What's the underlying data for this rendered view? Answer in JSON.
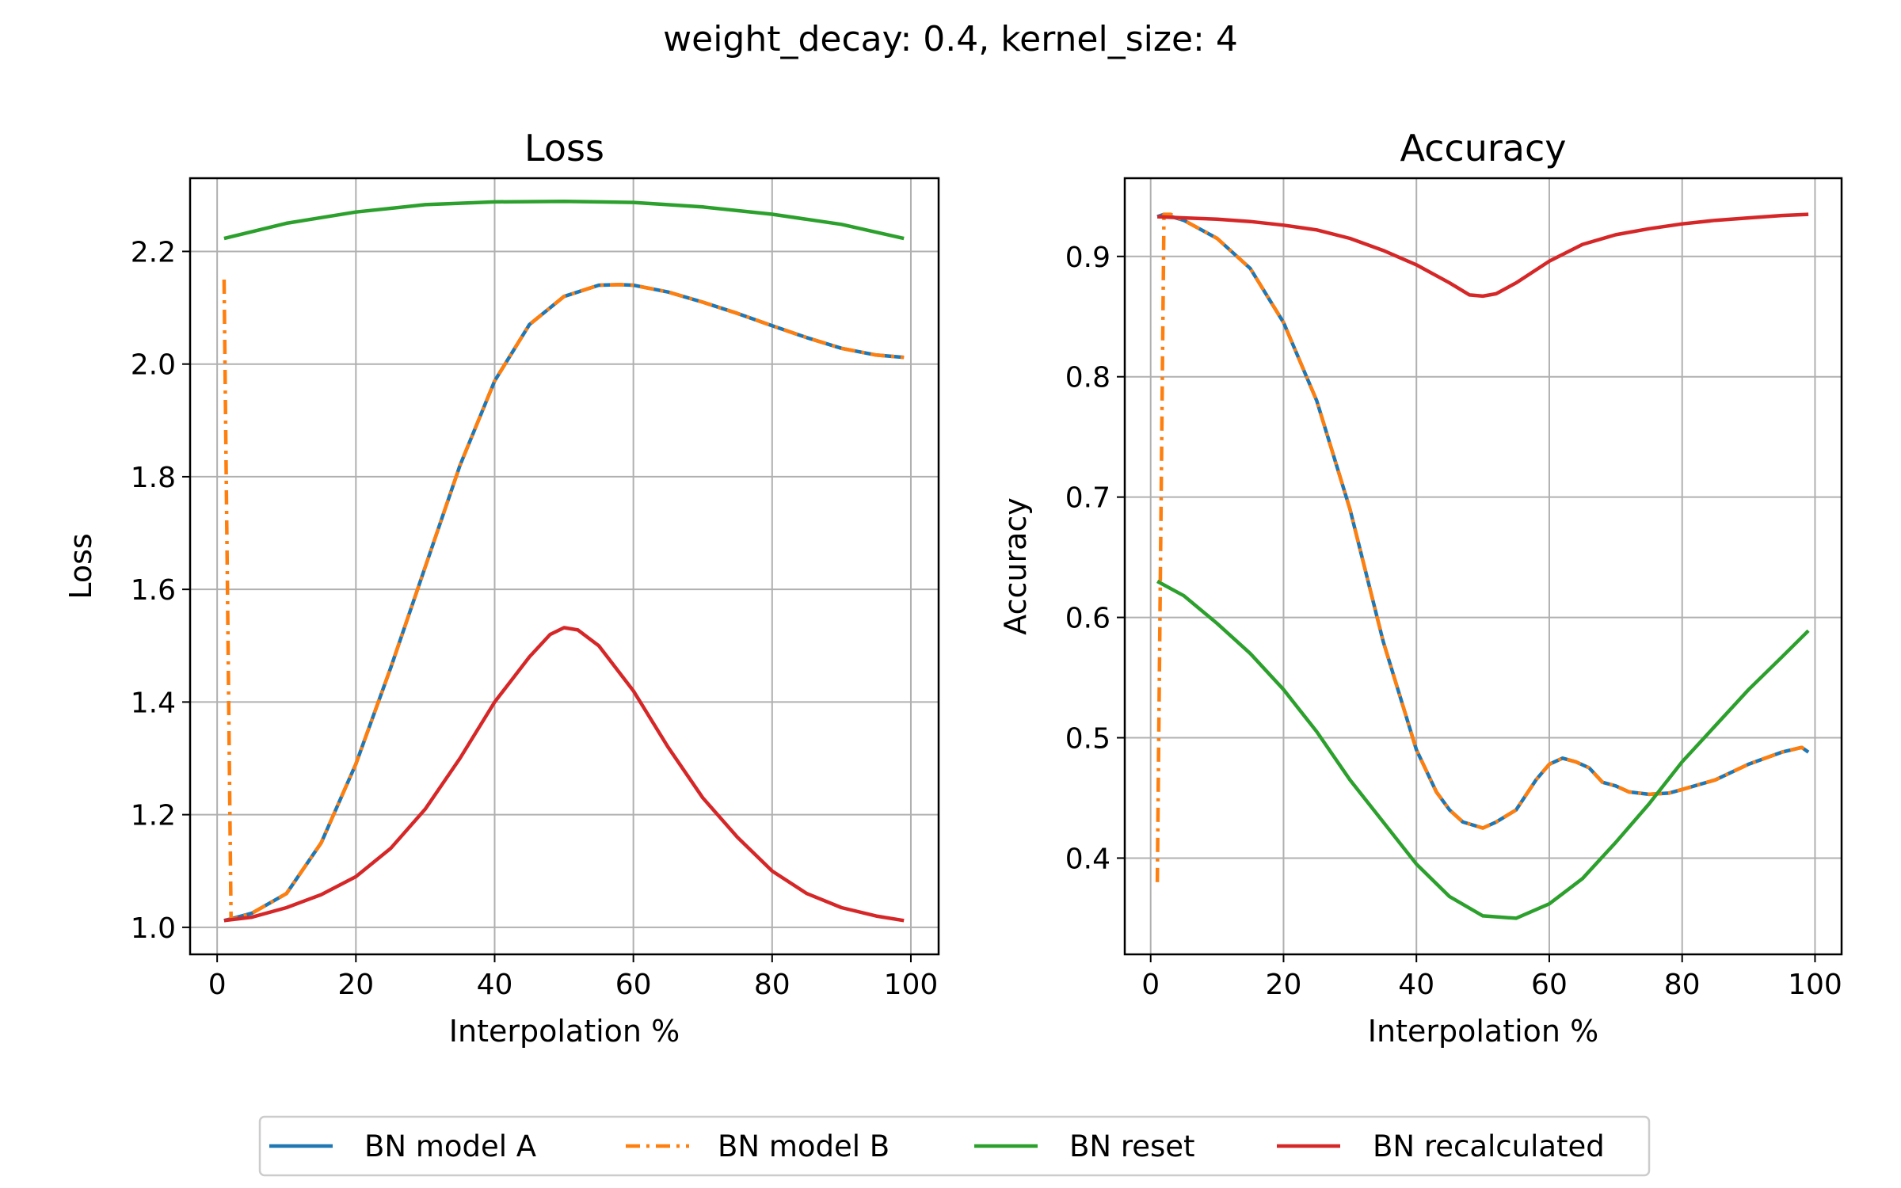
{
  "suptitle": "weight_decay: 0.4, kernel_size: 4",
  "legend": {
    "placement": "bottom-center",
    "entries": [
      {
        "label": "BN model A",
        "color": "#1f77b4",
        "style": "solid"
      },
      {
        "label": "BN model B",
        "color": "#ff7f0e",
        "style": "dashdot"
      },
      {
        "label": "BN reset",
        "color": "#2ca02c",
        "style": "solid"
      },
      {
        "label": "BN recalculated",
        "color": "#d62728",
        "style": "solid"
      }
    ]
  },
  "chart_data": [
    {
      "type": "line",
      "title": "Loss",
      "xlabel": "Interpolation %",
      "ylabel": "Loss",
      "xlim": [
        -3.9,
        104.0
      ],
      "ylim": [
        0.952,
        2.33
      ],
      "xticks": [
        "0",
        "20",
        "40",
        "60",
        "80",
        "100"
      ],
      "xtick_values": [
        0,
        20,
        40,
        60,
        80,
        100
      ],
      "yticks": [
        "1.0",
        "1.2",
        "1.4",
        "1.6",
        "1.8",
        "2.0",
        "2.2"
      ],
      "ytick_values": [
        1.0,
        1.2,
        1.4,
        1.6,
        1.8,
        2.0,
        2.2
      ],
      "grid": true,
      "series": [
        {
          "name": "BN model A",
          "color": "#1f77b4",
          "dash": "solid",
          "x": [
            1,
            2,
            5,
            10,
            15,
            20,
            25,
            30,
            35,
            40,
            45,
            50,
            55,
            58,
            60,
            65,
            70,
            75,
            80,
            85,
            90,
            95,
            99
          ],
          "y": [
            1.012,
            1.015,
            1.025,
            1.06,
            1.15,
            1.29,
            1.46,
            1.64,
            1.82,
            1.97,
            2.07,
            2.12,
            2.14,
            2.141,
            2.14,
            2.128,
            2.11,
            2.09,
            2.068,
            2.047,
            2.028,
            2.016,
            2.012
          ]
        },
        {
          "name": "BN model B",
          "color": "#ff7f0e",
          "dash": "dashdot",
          "x": [
            1,
            2,
            2.5,
            5,
            10,
            15,
            20,
            25,
            30,
            35,
            40,
            45,
            50,
            55,
            58,
            60,
            65,
            70,
            75,
            80,
            85,
            90,
            95,
            99
          ],
          "y": [
            2.15,
            1.015,
            1.015,
            1.025,
            1.06,
            1.15,
            1.29,
            1.46,
            1.64,
            1.82,
            1.97,
            2.07,
            2.12,
            2.14,
            2.141,
            2.14,
            2.128,
            2.11,
            2.09,
            2.068,
            2.047,
            2.028,
            2.016,
            2.012
          ]
        },
        {
          "name": "BN reset",
          "color": "#2ca02c",
          "dash": "solid",
          "x": [
            1,
            10,
            20,
            30,
            40,
            50,
            60,
            70,
            80,
            90,
            99
          ],
          "y": [
            2.223,
            2.25,
            2.27,
            2.283,
            2.288,
            2.289,
            2.287,
            2.279,
            2.266,
            2.248,
            2.223
          ]
        },
        {
          "name": "BN recalculated",
          "color": "#d62728",
          "dash": "solid",
          "x": [
            1,
            5,
            10,
            15,
            20,
            25,
            30,
            35,
            40,
            45,
            48,
            50,
            52,
            55,
            60,
            65,
            70,
            75,
            80,
            85,
            90,
            95,
            99
          ],
          "y": [
            1.012,
            1.018,
            1.035,
            1.058,
            1.09,
            1.14,
            1.21,
            1.3,
            1.4,
            1.48,
            1.52,
            1.532,
            1.528,
            1.5,
            1.42,
            1.32,
            1.23,
            1.16,
            1.1,
            1.06,
            1.035,
            1.02,
            1.012
          ]
        }
      ]
    },
    {
      "type": "line",
      "title": "Accuracy",
      "xlabel": "Interpolation %",
      "ylabel": "Accuracy",
      "xlim": [
        -3.9,
        104.0
      ],
      "ylim": [
        0.32,
        0.965
      ],
      "xticks": [
        "0",
        "20",
        "40",
        "60",
        "80",
        "100"
      ],
      "xtick_values": [
        0,
        20,
        40,
        60,
        80,
        100
      ],
      "yticks": [
        "0.4",
        "0.5",
        "0.6",
        "0.7",
        "0.8",
        "0.9"
      ],
      "ytick_values": [
        0.4,
        0.5,
        0.6,
        0.7,
        0.8,
        0.9
      ],
      "grid": true,
      "series": [
        {
          "name": "BN model A",
          "color": "#1f77b4",
          "dash": "solid",
          "x": [
            1,
            2,
            5,
            10,
            15,
            20,
            25,
            30,
            35,
            40,
            43,
            45,
            47,
            50,
            52,
            55,
            58,
            60,
            62,
            64,
            66,
            68,
            70,
            72,
            75,
            78,
            80,
            85,
            90,
            95,
            98,
            99
          ],
          "y": [
            0.933,
            0.935,
            0.93,
            0.915,
            0.89,
            0.845,
            0.78,
            0.69,
            0.58,
            0.49,
            0.455,
            0.44,
            0.43,
            0.425,
            0.43,
            0.44,
            0.465,
            0.478,
            0.483,
            0.48,
            0.475,
            0.463,
            0.46,
            0.455,
            0.453,
            0.454,
            0.457,
            0.465,
            0.478,
            0.488,
            0.492,
            0.488
          ]
        },
        {
          "name": "BN model B",
          "color": "#ff7f0e",
          "dash": "dashdot",
          "x": [
            1,
            2,
            3,
            5,
            10,
            15,
            20,
            25,
            30,
            35,
            40,
            43,
            45,
            47,
            50,
            52,
            55,
            58,
            60,
            62,
            64,
            66,
            68,
            70,
            72,
            75,
            78,
            80,
            85,
            90,
            95,
            98,
            99
          ],
          "y": [
            0.38,
            0.935,
            0.935,
            0.93,
            0.915,
            0.89,
            0.845,
            0.78,
            0.69,
            0.58,
            0.49,
            0.455,
            0.44,
            0.43,
            0.425,
            0.43,
            0.44,
            0.465,
            0.478,
            0.483,
            0.48,
            0.475,
            0.463,
            0.46,
            0.455,
            0.453,
            0.454,
            0.457,
            0.465,
            0.478,
            0.488,
            0.492,
            0.488
          ]
        },
        {
          "name": "BN reset",
          "color": "#2ca02c",
          "dash": "solid",
          "x": [
            1,
            5,
            10,
            15,
            20,
            25,
            30,
            35,
            40,
            45,
            50,
            55,
            60,
            65,
            70,
            75,
            80,
            85,
            90,
            95,
            99
          ],
          "y": [
            0.63,
            0.618,
            0.595,
            0.57,
            0.54,
            0.505,
            0.465,
            0.43,
            0.395,
            0.368,
            0.352,
            0.35,
            0.362,
            0.383,
            0.413,
            0.445,
            0.48,
            0.51,
            0.54,
            0.567,
            0.589
          ]
        },
        {
          "name": "BN recalculated",
          "color": "#d62728",
          "dash": "solid",
          "x": [
            1,
            5,
            10,
            15,
            20,
            25,
            30,
            35,
            40,
            45,
            48,
            50,
            52,
            55,
            60,
            65,
            70,
            75,
            80,
            85,
            90,
            95,
            99
          ],
          "y": [
            0.933,
            0.932,
            0.931,
            0.929,
            0.926,
            0.922,
            0.915,
            0.905,
            0.893,
            0.878,
            0.868,
            0.867,
            0.869,
            0.878,
            0.896,
            0.91,
            0.918,
            0.923,
            0.927,
            0.93,
            0.932,
            0.934,
            0.935
          ]
        }
      ]
    }
  ]
}
